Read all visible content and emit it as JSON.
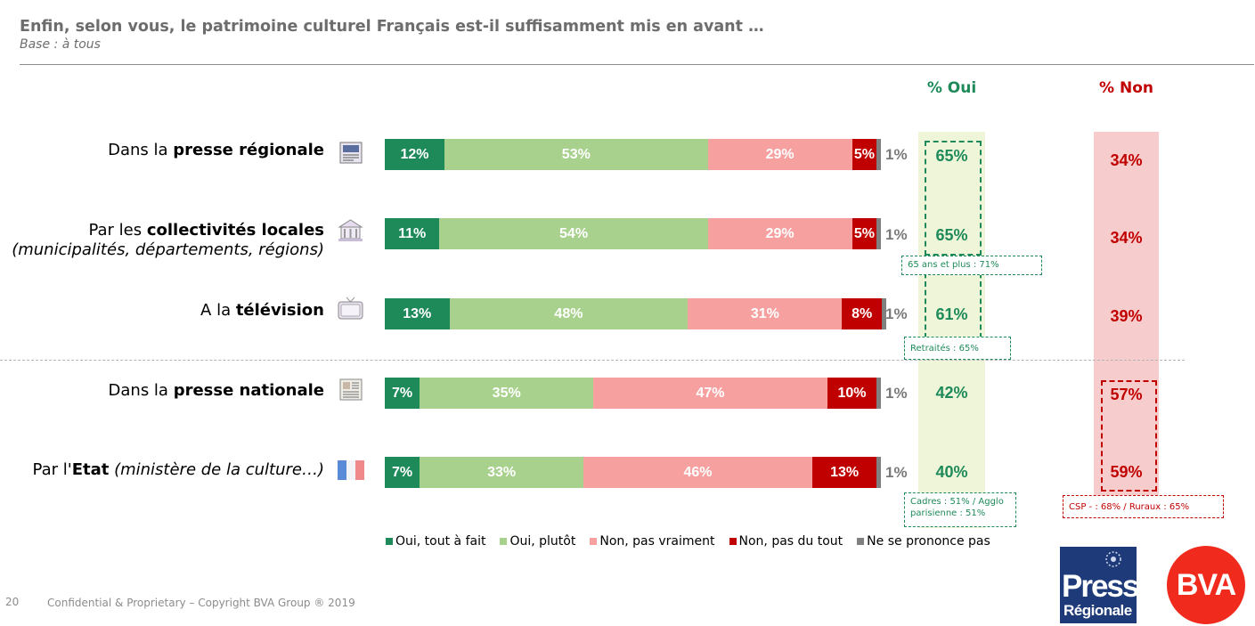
{
  "page": {
    "title": "Enfin, selon vous, le patrimoine culturel Français est-il suffisamment mis en avant …",
    "subtitle": "Base : à tous",
    "oui_header": "% Oui",
    "non_header": "% Non",
    "footer": "Confidential & Proprietary – Copyright BVA Group ® 2019",
    "page_number": "20",
    "logo_presse_line1": "Presse",
    "logo_presse_line2": "Régionale",
    "logo_bva": "BVA"
  },
  "colors": {
    "oui_tout": "#1e8a5a",
    "oui_plutot": "#a9d18e",
    "non_pas_vraiment": "#f6a0a0",
    "non_pas_du_tout": "#c00000",
    "nsp": "#808080",
    "oui_text": "#1e8a5a",
    "non_text": "#c00000"
  },
  "chart_data": {
    "type": "bar",
    "orientation": "horizontal",
    "stacked": true,
    "categories": [
      {
        "prefix": "Dans la ",
        "bold": "presse régionale",
        "suffix": "",
        "second_line": "",
        "icon": "newspaper-icon"
      },
      {
        "prefix": "Par les ",
        "bold": "collectivités locales",
        "suffix": "",
        "second_line": "(municipalités, départements, régions)",
        "icon": "town-hall-icon"
      },
      {
        "prefix": "A la ",
        "bold": "télévision",
        "suffix": "",
        "second_line": "",
        "icon": "television-icon"
      },
      {
        "prefix": "Dans la ",
        "bold": "presse nationale",
        "suffix": "",
        "second_line": "",
        "icon": "newspaper-icon"
      },
      {
        "prefix": "Par l'",
        "bold": "Etat",
        "suffix": " (ministère de la culture…)",
        "second_line": "",
        "icon": "french-flag-icon"
      }
    ],
    "series": [
      {
        "name": "Oui, tout à fait",
        "values": [
          12,
          11,
          13,
          7,
          7
        ],
        "labels": [
          "12%",
          "11%",
          "13%",
          "7%",
          "7%"
        ]
      },
      {
        "name": "Oui, plutôt",
        "values": [
          53,
          54,
          48,
          35,
          33
        ],
        "labels": [
          "53%",
          "54%",
          "48%",
          "35%",
          "33%"
        ]
      },
      {
        "name": "Non, pas vraiment",
        "values": [
          29,
          29,
          31,
          47,
          46
        ],
        "labels": [
          "29%",
          "29%",
          "31%",
          "47%",
          "46%"
        ]
      },
      {
        "name": "Non, pas du tout",
        "values": [
          5,
          5,
          8,
          10,
          13
        ],
        "labels": [
          "5%",
          "5%",
          "8%",
          "10%",
          "13%"
        ]
      },
      {
        "name": "Ne se prononce pas",
        "values": [
          1,
          1,
          1,
          1,
          1
        ],
        "labels": [
          "1%",
          "1%",
          "1%",
          "1%",
          "1%"
        ]
      }
    ],
    "total_oui": [
      "65%",
      "65%",
      "61%",
      "42%",
      "40%"
    ],
    "total_non": [
      "34%",
      "34%",
      "39%",
      "57%",
      "59%"
    ],
    "annotations": {
      "collectivites": "65 ans et plus : 71%",
      "television": "Retraités : 65%",
      "etat_oui_line1": "Cadres : 51% / Agglo",
      "etat_oui_line2": "parisienne : 51%",
      "etat_non": "CSP - : 68% /  Ruraux : 65%"
    },
    "legend_position": "bottom"
  }
}
